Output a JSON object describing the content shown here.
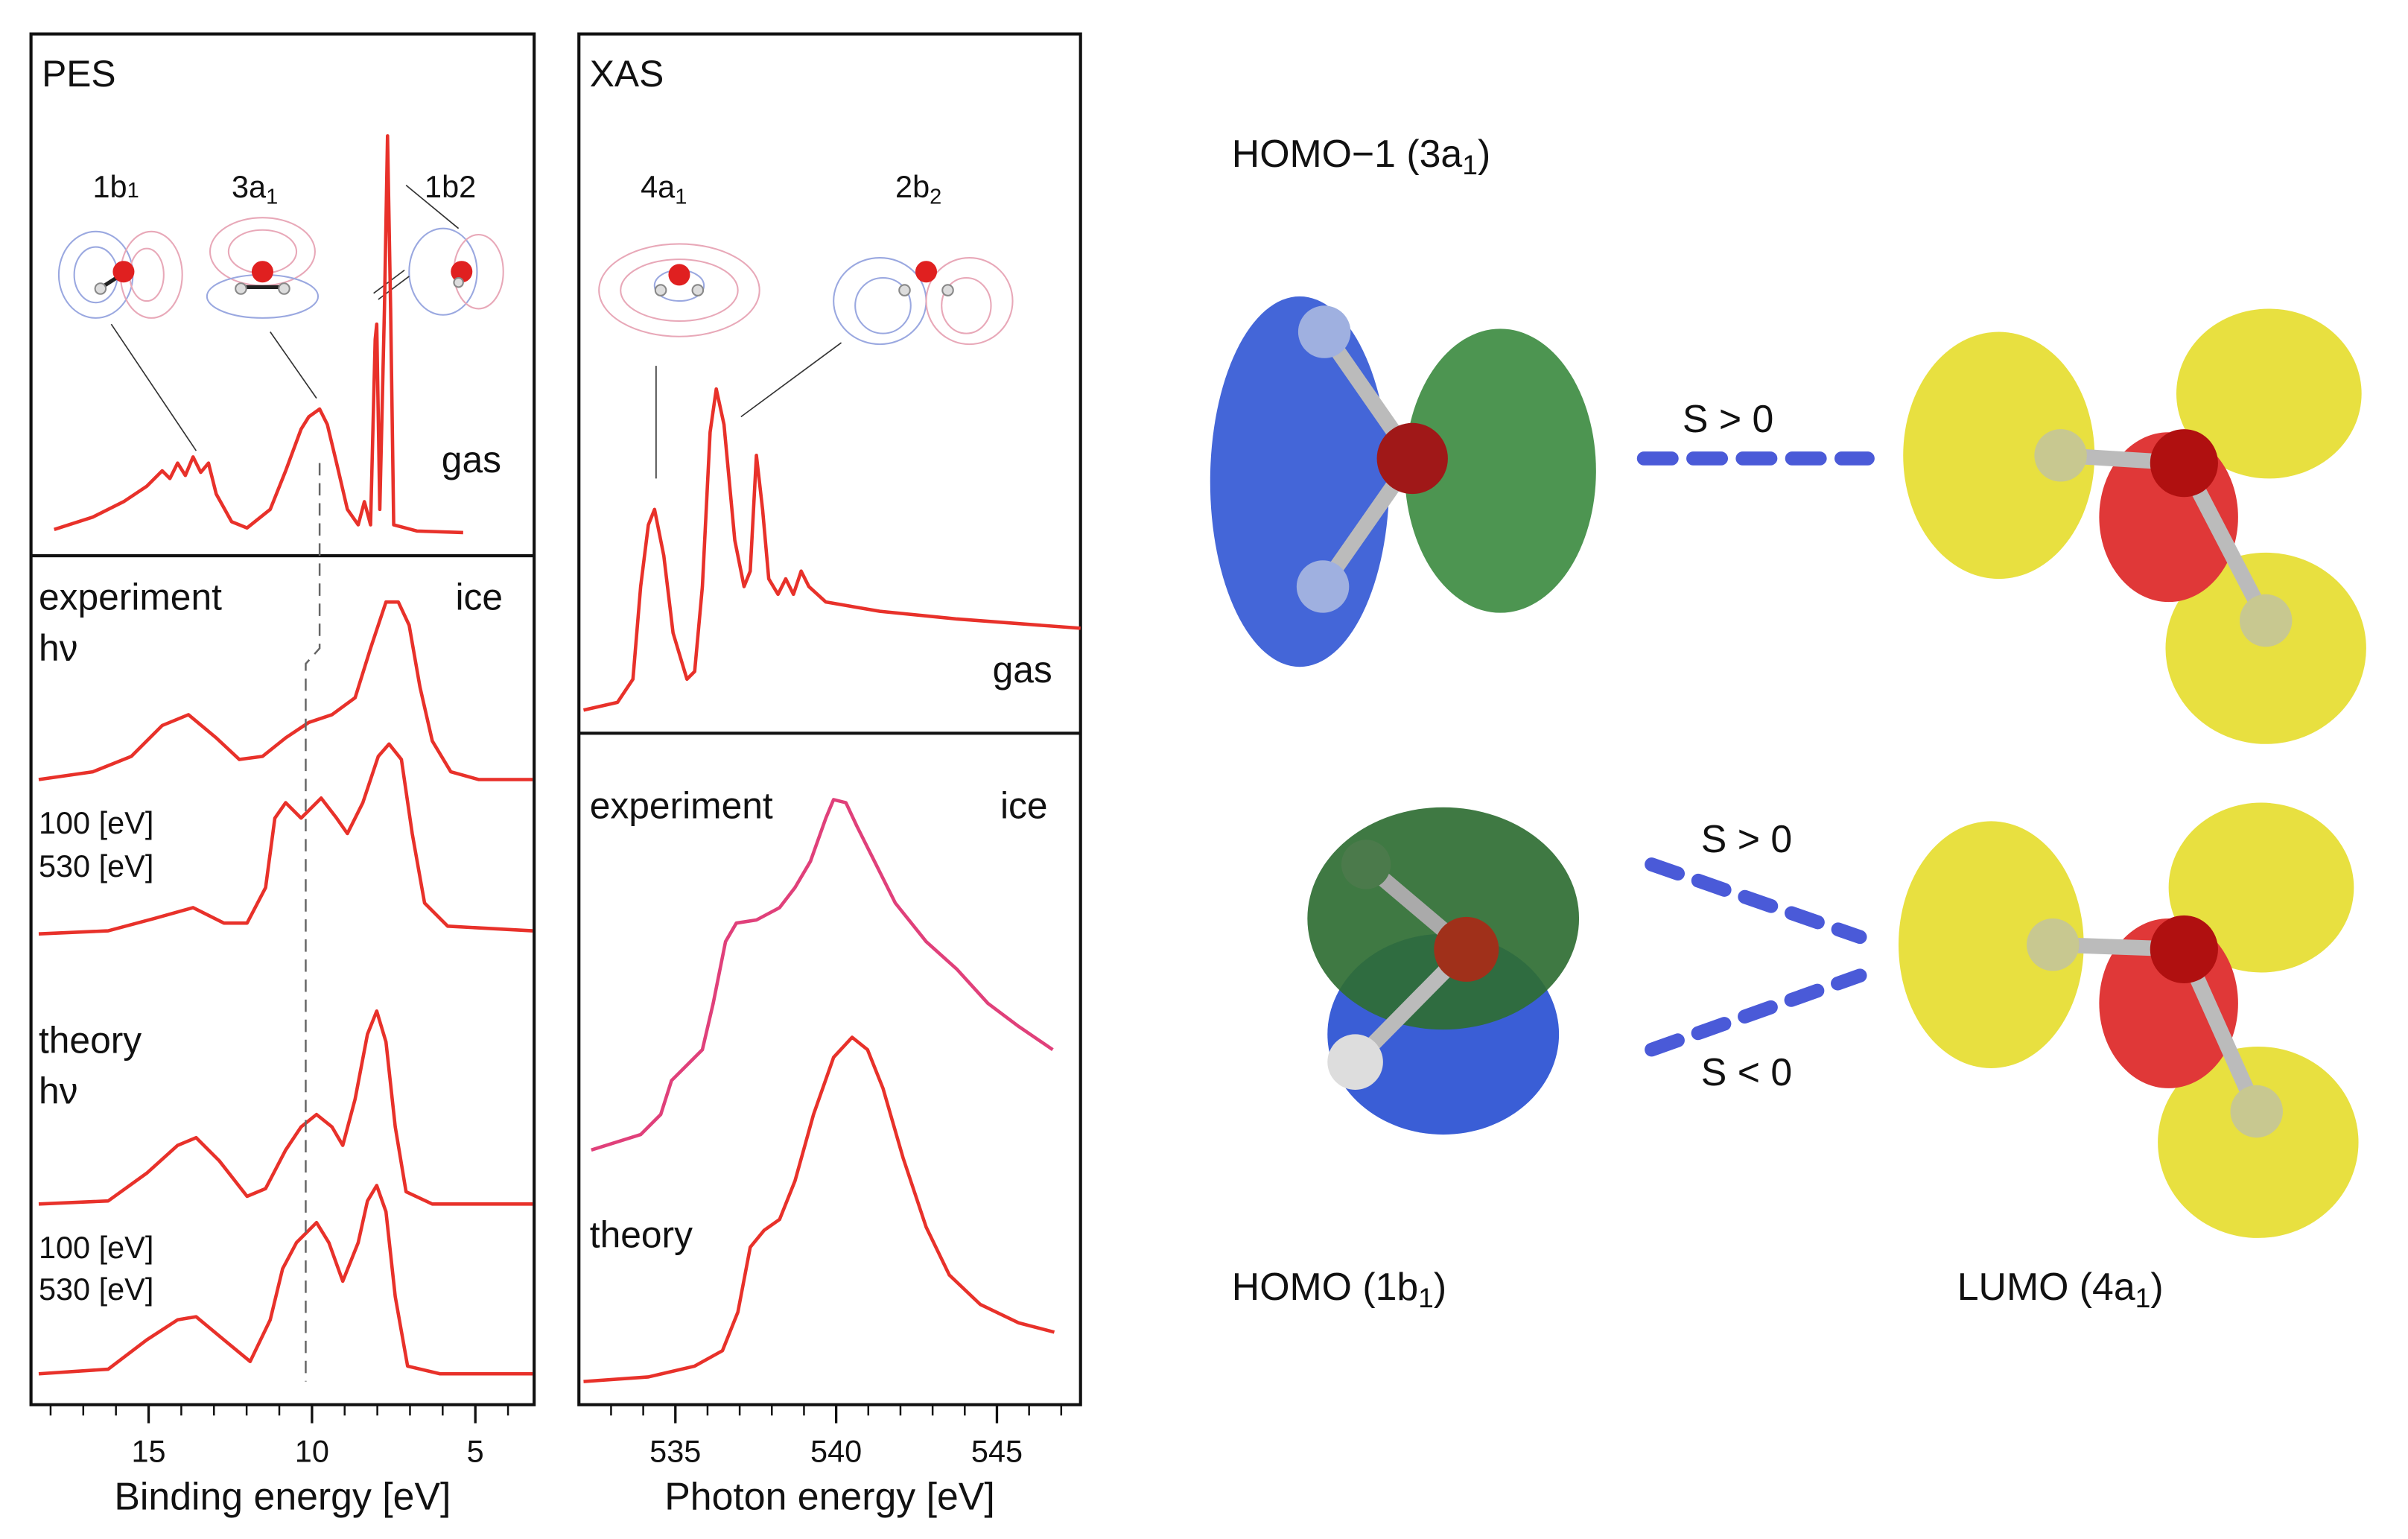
{
  "pes": {
    "title": "PES",
    "orbitals": [
      {
        "name": "1b",
        "sub": "1"
      },
      {
        "name": "3a",
        "sub": "1"
      },
      {
        "name": "1b",
        "sub": "2"
      }
    ],
    "gas_label": "gas",
    "ice_label": "ice",
    "experiment_label": "experiment",
    "theory_label": "theory",
    "hv": "hν",
    "energies": [
      "100 [eV]",
      "530 [eV]"
    ],
    "axis": {
      "label": "Binding energy [eV]",
      "xlim": [
        18.6,
        3.2
      ],
      "xticks": [
        15,
        10,
        5
      ],
      "minor_ticks": [
        4,
        6,
        7,
        8,
        9,
        11,
        12,
        13,
        14,
        16,
        17,
        18
      ]
    }
  },
  "xas": {
    "title": "XAS",
    "orbitals": [
      {
        "name": "4a",
        "sub": "1"
      },
      {
        "name": "2b",
        "sub": "2"
      }
    ],
    "gas_label": "gas",
    "ice_label": "ice",
    "experiment_label": "experiment",
    "theory_label": "theory",
    "axis": {
      "label": "Photon energy [eV]",
      "xlim": [
        532.0,
        547.6
      ],
      "xticks": [
        535,
        540,
        545
      ],
      "minor_ticks": [
        533,
        534,
        536,
        537,
        538,
        539,
        541,
        542,
        543,
        544,
        546,
        547
      ]
    }
  },
  "orbitals": {
    "homo_minus_1": {
      "name": "HOMO−1 (3a",
      "sub": "1",
      "close": ")"
    },
    "homo": {
      "name": "HOMO (1b",
      "sub": "1",
      "close": ")"
    },
    "lumo": {
      "name": "LUMO (4a",
      "sub": "1",
      "close": ")"
    },
    "overlaps": [
      "S > 0",
      "S > 0",
      "S < 0"
    ]
  }
}
